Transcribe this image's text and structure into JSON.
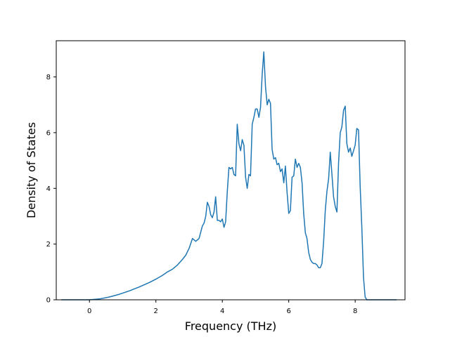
{
  "chart_data": {
    "type": "line",
    "title": "",
    "xlabel": "Frequency (THz)",
    "ylabel": "Density of States",
    "xlim": [
      -1.0,
      9.5
    ],
    "ylim": [
      0,
      9.3
    ],
    "x_ticks": [
      0,
      2,
      4,
      6,
      8
    ],
    "x_tick_labels": [
      "0",
      "2",
      "4",
      "6",
      "8"
    ],
    "y_ticks": [
      0,
      2,
      4,
      6,
      8
    ],
    "y_tick_labels": [
      "0",
      "2",
      "4",
      "6",
      "8"
    ],
    "grid": false,
    "legend": false,
    "series": [
      {
        "color": "#1f77b4",
        "x": [
          -0.85,
          -0.5,
          0.0,
          0.3,
          0.6,
          0.9,
          1.2,
          1.5,
          1.8,
          2.0,
          2.2,
          2.35,
          2.5,
          2.65,
          2.8,
          2.9,
          3.0,
          3.1,
          3.2,
          3.3,
          3.4,
          3.45,
          3.5,
          3.55,
          3.6,
          3.65,
          3.7,
          3.75,
          3.8,
          3.85,
          3.9,
          3.95,
          4.0,
          4.05,
          4.1,
          4.15,
          4.2,
          4.25,
          4.3,
          4.35,
          4.4,
          4.45,
          4.5,
          4.55,
          4.6,
          4.65,
          4.7,
          4.75,
          4.8,
          4.85,
          4.9,
          4.95,
          5.0,
          5.05,
          5.1,
          5.15,
          5.2,
          5.25,
          5.3,
          5.35,
          5.4,
          5.45,
          5.5,
          5.55,
          5.6,
          5.65,
          5.7,
          5.75,
          5.8,
          5.85,
          5.9,
          5.95,
          6.0,
          6.05,
          6.1,
          6.15,
          6.2,
          6.25,
          6.3,
          6.35,
          6.4,
          6.45,
          6.5,
          6.55,
          6.6,
          6.65,
          6.7,
          6.75,
          6.8,
          6.85,
          6.9,
          6.95,
          7.0,
          7.05,
          7.1,
          7.15,
          7.2,
          7.25,
          7.3,
          7.35,
          7.4,
          7.45,
          7.5,
          7.55,
          7.6,
          7.65,
          7.7,
          7.75,
          7.8,
          7.85,
          7.9,
          7.95,
          8.0,
          8.05,
          8.1,
          8.15,
          8.2,
          8.25,
          8.3,
          8.35,
          8.4,
          8.45,
          8.5,
          9.0,
          9.25
        ],
        "y": [
          0.0,
          0.0,
          0.0,
          0.03,
          0.1,
          0.2,
          0.32,
          0.46,
          0.62,
          0.74,
          0.88,
          1.0,
          1.1,
          1.25,
          1.45,
          1.6,
          1.85,
          2.2,
          2.1,
          2.2,
          2.65,
          2.75,
          3.0,
          3.5,
          3.35,
          3.05,
          2.95,
          3.15,
          3.7,
          2.85,
          2.85,
          2.8,
          2.9,
          2.6,
          2.8,
          3.9,
          4.75,
          4.7,
          4.75,
          4.5,
          4.45,
          6.3,
          5.6,
          5.35,
          5.75,
          5.55,
          4.4,
          4.0,
          4.5,
          4.45,
          6.3,
          6.55,
          6.85,
          6.85,
          6.55,
          6.9,
          8.1,
          8.9,
          7.65,
          7.0,
          7.2,
          7.05,
          5.4,
          5.05,
          5.1,
          4.85,
          4.9,
          4.6,
          4.7,
          4.2,
          4.8,
          3.85,
          3.1,
          3.2,
          4.4,
          4.45,
          5.05,
          4.75,
          4.9,
          4.75,
          4.2,
          3.1,
          2.4,
          2.2,
          1.7,
          1.45,
          1.35,
          1.3,
          1.3,
          1.25,
          1.15,
          1.15,
          1.3,
          2.1,
          3.2,
          3.9,
          4.35,
          5.3,
          4.5,
          3.7,
          3.35,
          3.15,
          4.9,
          6.0,
          6.2,
          6.8,
          6.95,
          5.6,
          5.3,
          5.45,
          5.15,
          5.35,
          5.55,
          6.15,
          6.1,
          4.1,
          2.6,
          0.8,
          0.1,
          0.0,
          0.0,
          0.0,
          0.0,
          0.0,
          0.0
        ]
      }
    ]
  }
}
